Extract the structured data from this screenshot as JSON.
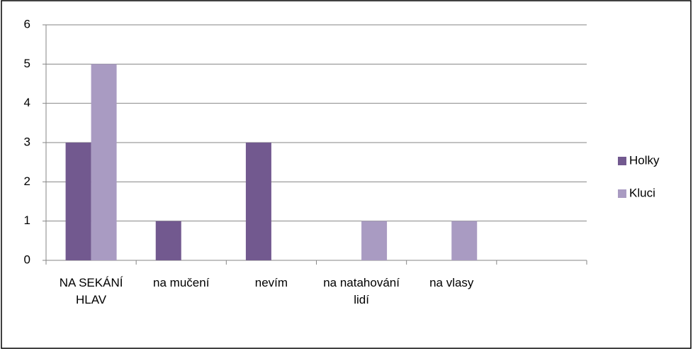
{
  "chart_data": {
    "type": "bar",
    "categories": [
      "NA SEKÁNÍ HLAV",
      "na mučení",
      "nevím",
      "na natahování lidí",
      "na vlasy",
      null
    ],
    "series": [
      {
        "name": "Holky",
        "color": "#72598f",
        "values": [
          3,
          1,
          3,
          0,
          0,
          null
        ]
      },
      {
        "name": "Kluci",
        "color": "#a99bc2",
        "values": [
          5,
          0,
          0,
          1,
          1,
          null
        ]
      }
    ],
    "ylim": [
      0,
      6
    ],
    "yticks": [
      0,
      1,
      2,
      3,
      4,
      5,
      6
    ],
    "grid": true,
    "legend": "right"
  }
}
